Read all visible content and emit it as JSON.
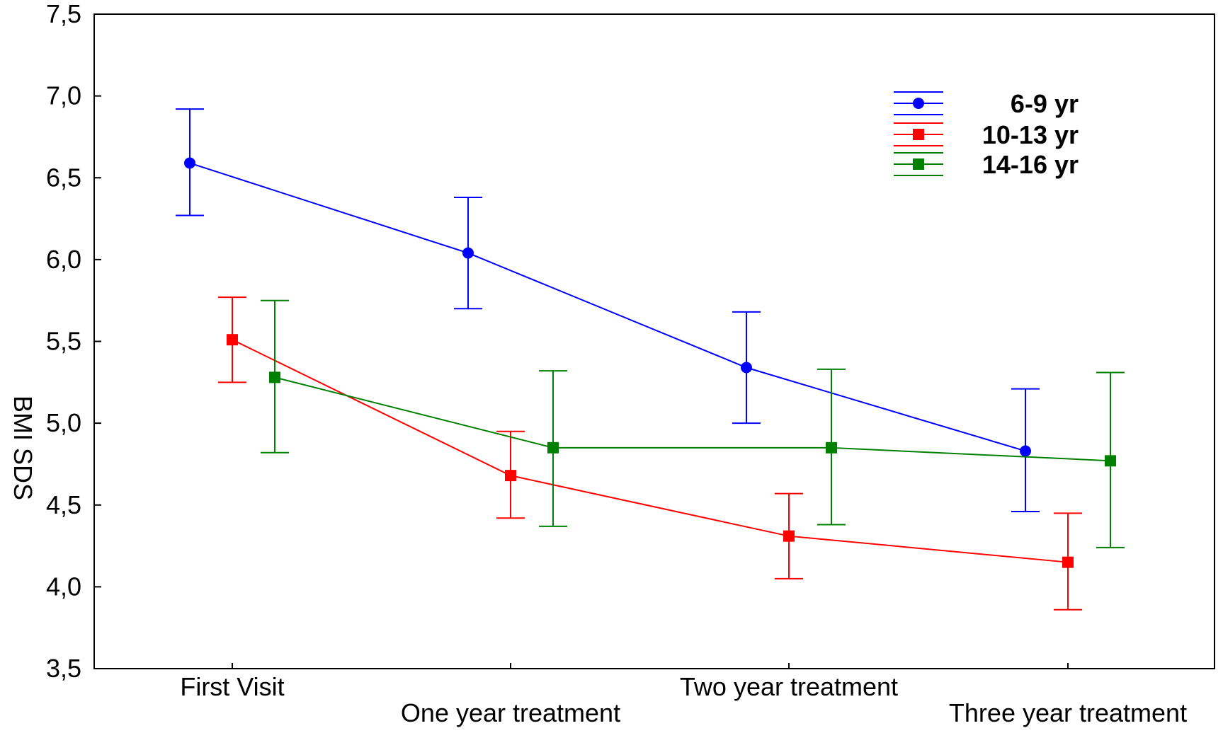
{
  "chart_data": {
    "type": "line",
    "title": "",
    "xlabel": "",
    "ylabel": "BMI SDS",
    "ylim": [
      3.5,
      7.5
    ],
    "yticks": [
      "3,5",
      "4,0",
      "4,5",
      "5,0",
      "5,5",
      "6,0",
      "6,5",
      "7,0",
      "7,5"
    ],
    "categories": [
      "First Visit",
      "One year treatment",
      "Two year treatment",
      "Three year treatment"
    ],
    "grid": false,
    "legend_position": "top-right",
    "series": [
      {
        "name": "6-9 yr",
        "color": "#0000ff",
        "marker": "circle",
        "values": [
          6.59,
          6.04,
          5.34,
          4.83
        ],
        "lower": [
          6.27,
          5.7,
          5.0,
          4.46
        ],
        "upper": [
          6.92,
          6.38,
          5.68,
          5.21
        ]
      },
      {
        "name": "10-13 yr",
        "color": "#ff0000",
        "marker": "square",
        "values": [
          5.51,
          4.68,
          4.31,
          4.15
        ],
        "lower": [
          5.25,
          4.42,
          4.05,
          3.86
        ],
        "upper": [
          5.77,
          4.95,
          4.57,
          4.45
        ]
      },
      {
        "name": "14-16 yr",
        "color": "#008000",
        "marker": "square",
        "values": [
          5.28,
          4.85,
          4.85,
          4.77
        ],
        "lower": [
          4.82,
          4.37,
          4.38,
          4.24
        ],
        "upper": [
          5.75,
          5.32,
          5.33,
          5.31
        ]
      }
    ]
  }
}
